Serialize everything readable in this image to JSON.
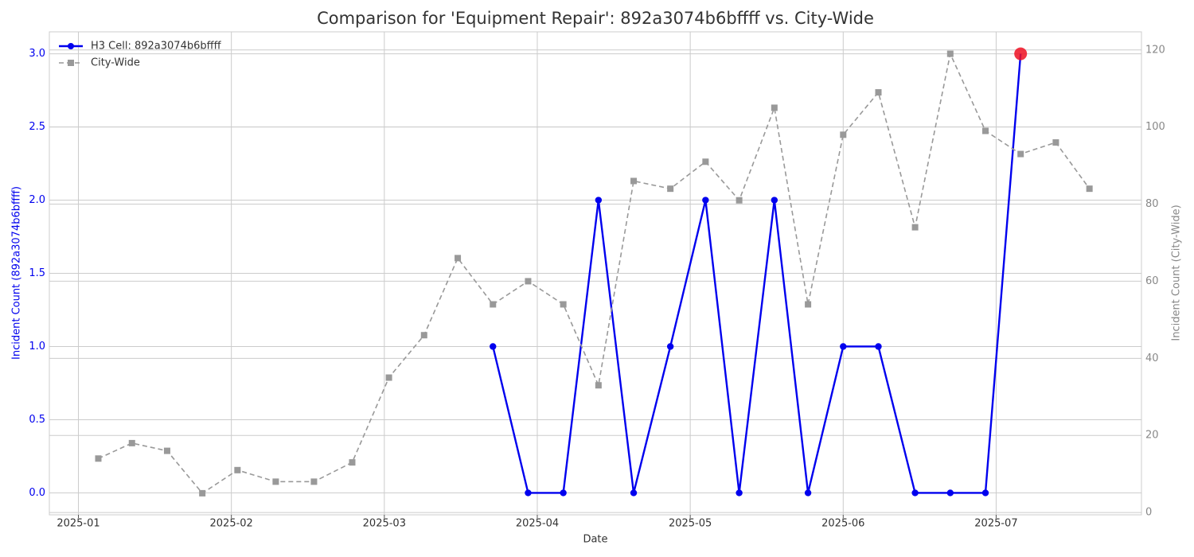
{
  "chart_data": {
    "type": "line",
    "title": "Comparison for 'Equipment Repair': 892a3074b6bffff vs. City-Wide",
    "xlabel": "Date",
    "ylabel": "Incident Count (892a3074b6bffff)",
    "y2label": "Incident Count (City-Wide)",
    "x": [
      0.13,
      0.35,
      0.58,
      0.81,
      1.04,
      1.29,
      1.54,
      1.79,
      2.03,
      2.26,
      2.48,
      2.71,
      2.94,
      3.17,
      3.4,
      3.63,
      3.87,
      4.1,
      4.32,
      4.55,
      4.77,
      5.0,
      5.23,
      5.47,
      5.7,
      5.93,
      6.16,
      6.39,
      6.61
    ],
    "xlim": [
      -0.19,
      6.95
    ],
    "xticks": [
      {
        "value": 0,
        "label": "2025-01"
      },
      {
        "value": 1,
        "label": "2025-02"
      },
      {
        "value": 2,
        "label": "2025-03"
      },
      {
        "value": 3,
        "label": "2025-04"
      },
      {
        "value": 4,
        "label": "2025-05"
      },
      {
        "value": 5,
        "label": "2025-06"
      },
      {
        "value": 6,
        "label": "2025-07"
      }
    ],
    "ylim": [
      -0.15,
      3.15
    ],
    "yticks": [
      {
        "value": 0,
        "label": "0.0"
      },
      0.5,
      {
        "value": 1,
        "label": "1.0"
      },
      1.5,
      {
        "value": 2,
        "label": "2.0"
      },
      2.5,
      {
        "value": 3,
        "label": "3.0"
      }
    ],
    "y2lim": [
      -0.6,
      124.7
    ],
    "y2ticks": [
      0,
      20,
      40,
      60,
      80,
      100,
      120
    ],
    "grid": true,
    "legend": "upper left",
    "series": [
      {
        "name": "H3 Cell: 892a3074b6bffff",
        "color": "#0000ee",
        "marker": "circle",
        "dash": false,
        "highlight_color": "#ee1122",
        "values": [
          null,
          null,
          null,
          null,
          null,
          null,
          null,
          null,
          null,
          null,
          null,
          1,
          0,
          0,
          2,
          0,
          1,
          2,
          0,
          2,
          0,
          1,
          1,
          0,
          0,
          0,
          3,
          null,
          null
        ]
      },
      {
        "name": "City-Wide",
        "color": "#999999",
        "marker": "square",
        "dash": true,
        "axis": "y2",
        "values": [
          14,
          18,
          16,
          5,
          11,
          8,
          8,
          13,
          35,
          46,
          66,
          54,
          60,
          54,
          33,
          86,
          84,
          91,
          81,
          105,
          54,
          98,
          109,
          74,
          119,
          99,
          93,
          96,
          84
        ]
      }
    ]
  }
}
